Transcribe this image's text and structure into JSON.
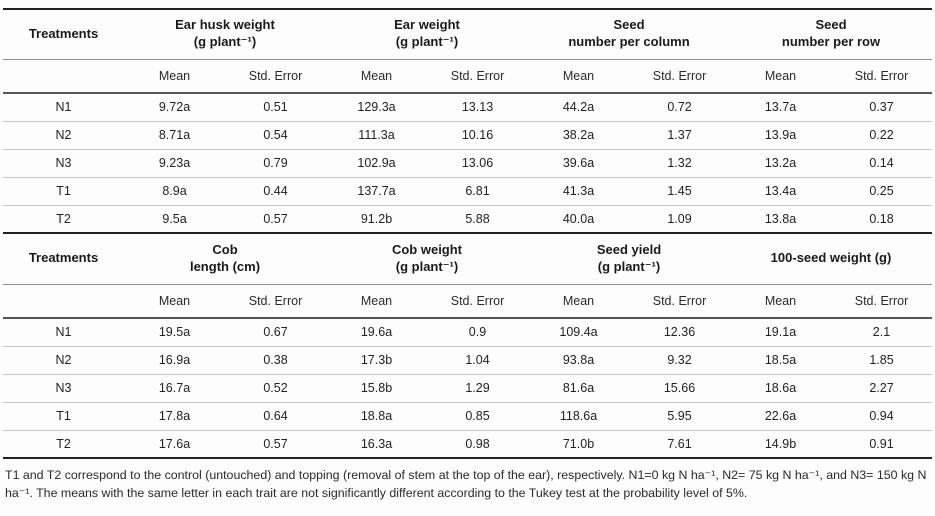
{
  "labels": {
    "treatments": "Treatments",
    "mean": "Mean",
    "std_error": "Std. Error"
  },
  "t1": {
    "groups": [
      {
        "l1": "Ear husk weight",
        "l2": "(g plant⁻¹)"
      },
      {
        "l1": "Ear weight",
        "l2": "(g plant⁻¹)"
      },
      {
        "l1": "Seed",
        "l2": "number per column"
      },
      {
        "l1": "Seed",
        "l2": "number per row"
      }
    ],
    "rows": [
      {
        "t": "N1",
        "v": [
          "9.72a",
          "0.51",
          "129.3a",
          "13.13",
          "44.2a",
          "0.72",
          "13.7a",
          "0.37"
        ]
      },
      {
        "t": "N2",
        "v": [
          "8.71a",
          "0.54",
          "111.3a",
          "10.16",
          "38.2a",
          "1.37",
          "13.9a",
          "0.22"
        ]
      },
      {
        "t": "N3",
        "v": [
          "9.23a",
          "0.79",
          "102.9a",
          "13.06",
          "39.6a",
          "1.32",
          "13.2a",
          "0.14"
        ]
      },
      {
        "t": "T1",
        "v": [
          "8.9a",
          "0.44",
          "137.7a",
          "6.81",
          "41.3a",
          "1.45",
          "13.4a",
          "0.25"
        ]
      },
      {
        "t": "T2",
        "v": [
          "9.5a",
          "0.57",
          "91.2b",
          "5.88",
          "40.0a",
          "1.09",
          "13.8a",
          "0.18"
        ]
      }
    ]
  },
  "t2": {
    "groups": [
      {
        "l1": "Cob",
        "l2": "length (cm)"
      },
      {
        "l1": "Cob weight",
        "l2": "(g plant⁻¹)"
      },
      {
        "l1": "Seed yield",
        "l2": "(g plant⁻¹)"
      },
      {
        "l1": "100-seed weight (g)",
        "l2": ""
      }
    ],
    "rows": [
      {
        "t": "N1",
        "v": [
          "19.5a",
          "0.67",
          "19.6a",
          "0.9",
          "109.4a",
          "12.36",
          "19.1a",
          "2.1"
        ]
      },
      {
        "t": "N2",
        "v": [
          "16.9a",
          "0.38",
          "17.3b",
          "1.04",
          "93.8a",
          "9.32",
          "18.5a",
          "1.85"
        ]
      },
      {
        "t": "N3",
        "v": [
          "16.7a",
          "0.52",
          "15.8b",
          "1.29",
          "81.6a",
          "15.66",
          "18.6a",
          "2.27"
        ]
      },
      {
        "t": "T1",
        "v": [
          "17.8a",
          "0.64",
          "18.8a",
          "0.85",
          "118.6a",
          "5.95",
          "22.6a",
          "0.94"
        ]
      },
      {
        "t": "T2",
        "v": [
          "17.6a",
          "0.57",
          "16.3a",
          "0.98",
          "71.0b",
          "7.61",
          "14.9b",
          "0.91"
        ]
      }
    ]
  },
  "footnote": "T1 and T2 correspond to the control (untouched) and topping (removal of stem at the top of the ear), respectively. N1=0 kg N ha⁻¹, N2= 75 kg N ha⁻¹, and N3= 150 kg N ha⁻¹. The means with the same letter in each trait are not significantly different according to the Tukey test at the probability level of 5%."
}
